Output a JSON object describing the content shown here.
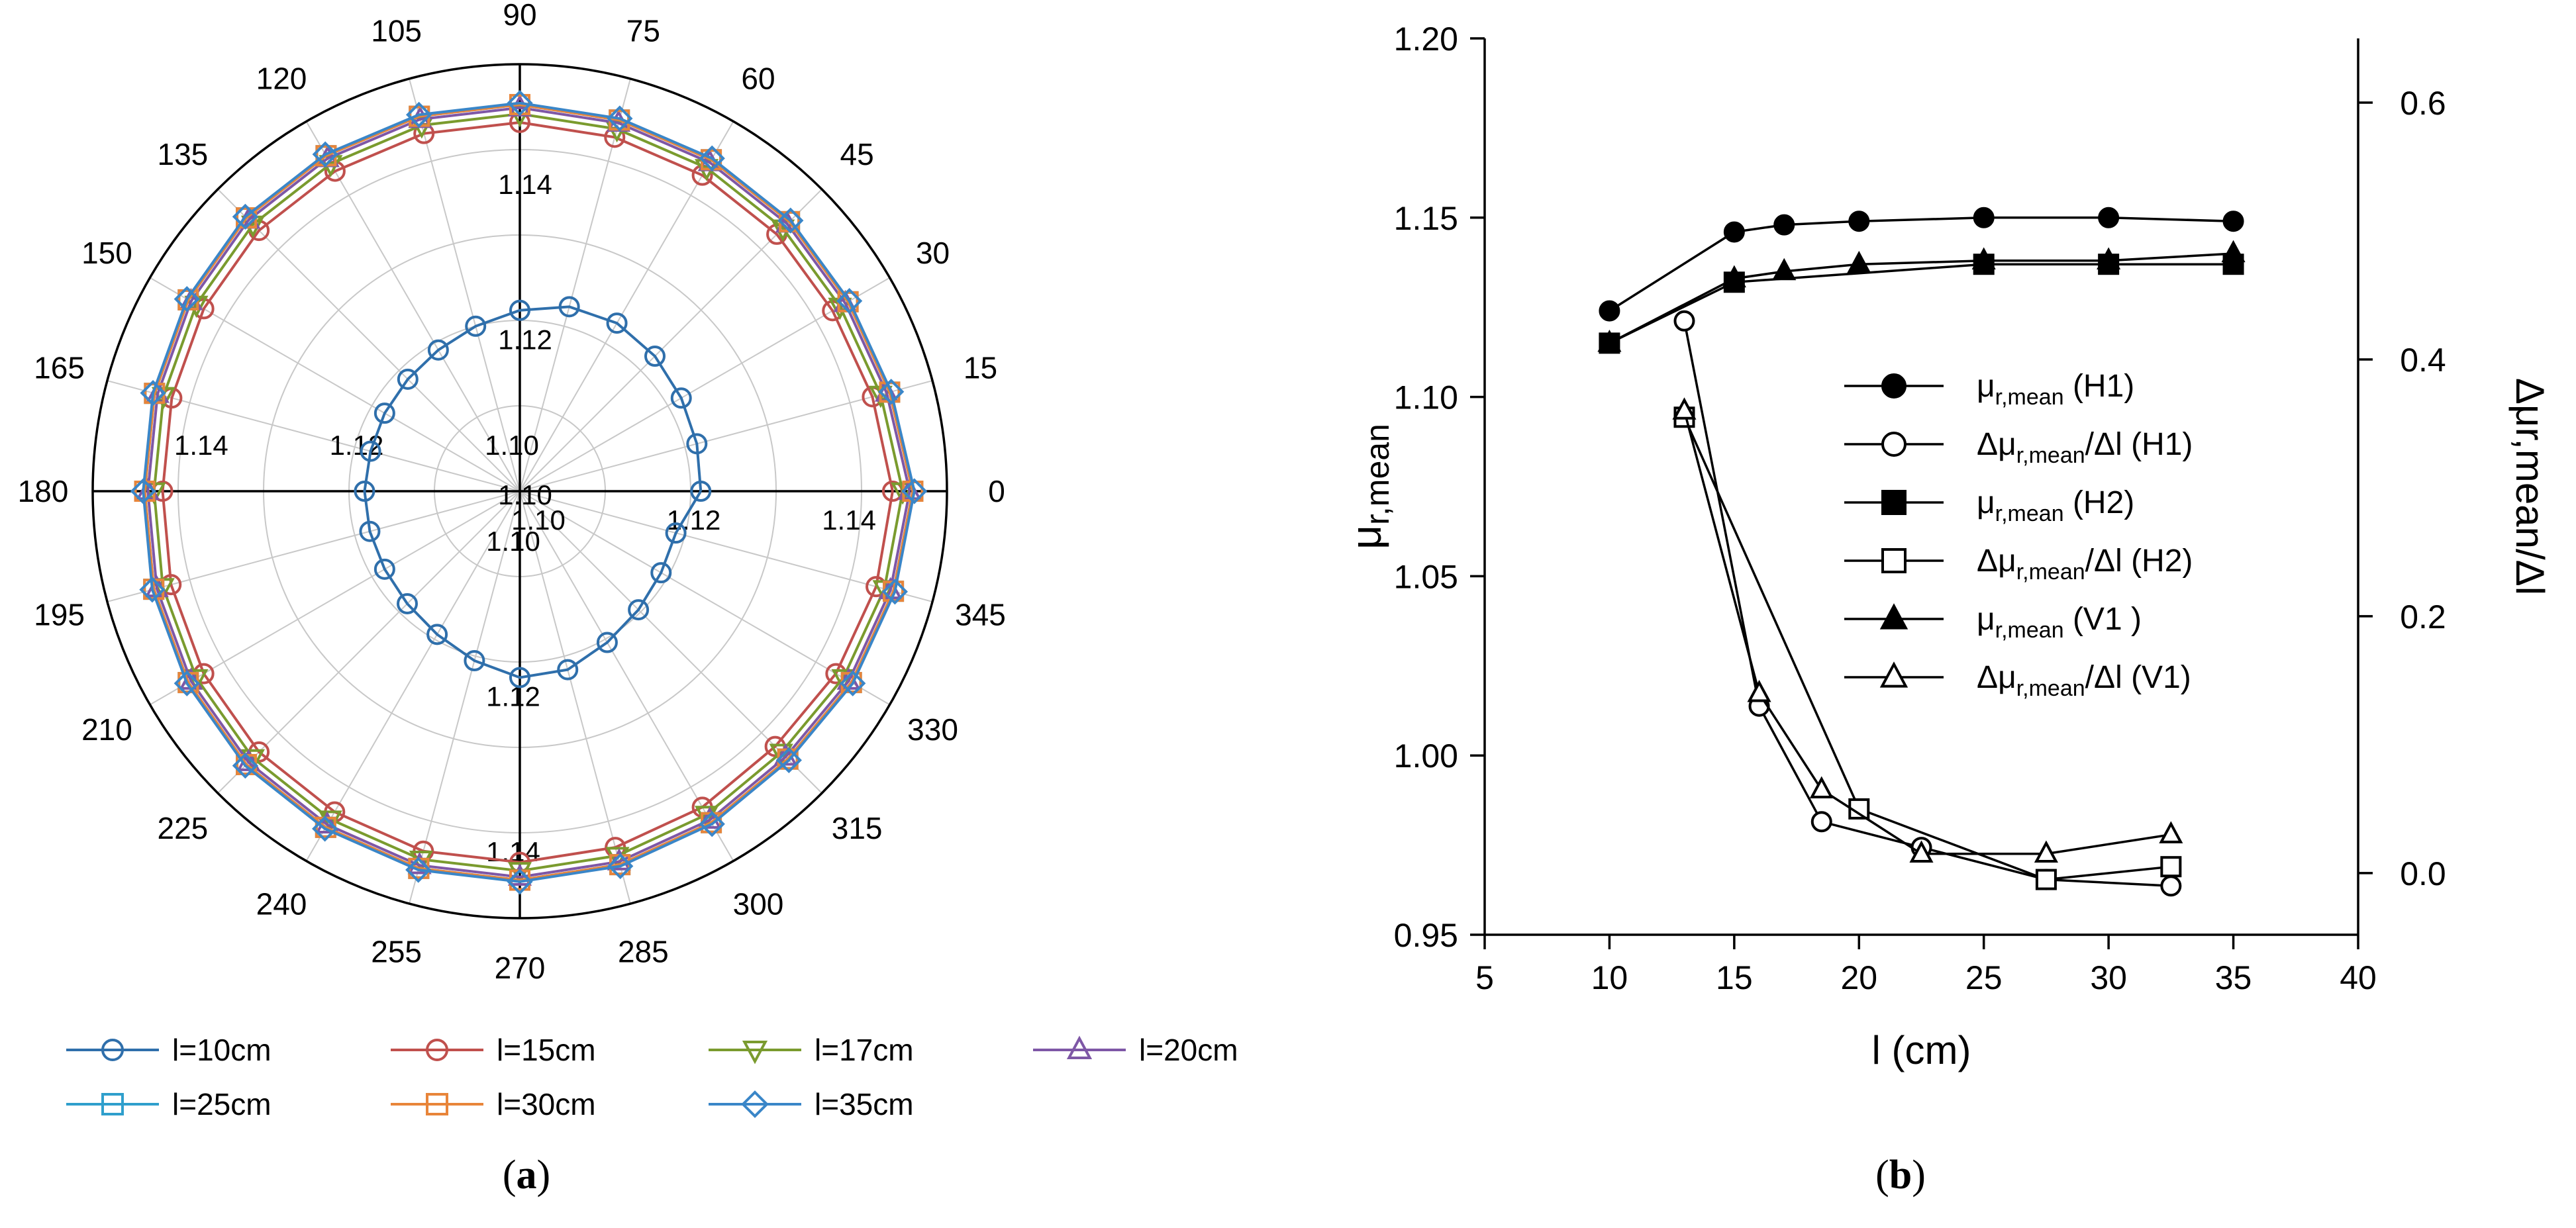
{
  "chart_data": [
    {
      "panel": "(a)",
      "type": "polar-line",
      "caption": "(a)",
      "angle_labels": [
        "0",
        "15",
        "30",
        "45",
        "60",
        "75",
        "90",
        "105",
        "120",
        "135",
        "150",
        "165",
        "180",
        "195",
        "210",
        "225",
        "240",
        "255",
        "270",
        "285",
        "300",
        "315",
        "330",
        "345"
      ],
      "radial_range": [
        1.1,
        1.155
      ],
      "radial_tick_values": [
        1.1,
        1.12,
        1.14
      ],
      "radial_tick_labels": [
        "1.10",
        "1.12",
        "1.14"
      ],
      "legend_position": "bottom",
      "series": [
        {
          "name": "l=10cm",
          "color": "#2f6fab",
          "marker": "circle",
          "values": [
            1.1233,
            1.1236,
            1.124,
            1.1246,
            1.125,
            1.1246,
            1.1233,
            1.122,
            1.121,
            1.1204,
            1.1201,
            1.1199,
            1.12,
            1.12,
            1.1201,
            1.1205,
            1.1213,
            1.1226,
            1.124,
            1.1238,
            1.1225,
            1.1216,
            1.121,
            1.1208
          ]
        },
        {
          "name": "l=15cm",
          "color": "#c0504d",
          "marker": "circle",
          "values": [
            1.148,
            1.147,
            1.1465,
            1.1468,
            1.147,
            1.1472,
            1.1475,
            1.1477,
            1.1476,
            1.1475,
            1.147,
            1.1464,
            1.146,
            1.1465,
            1.147,
            1.1475,
            1.1477,
            1.148,
            1.1478,
            1.1475,
            1.147,
            1.1465,
            1.147,
            1.1475
          ]
        },
        {
          "name": "l=17cm",
          "color": "#7a9b2e",
          "marker": "triangle-down",
          "values": [
            1.1493,
            1.1481,
            1.1476,
            1.1479,
            1.1481,
            1.1483,
            1.1486,
            1.1488,
            1.1487,
            1.1486,
            1.1481,
            1.1475,
            1.1471,
            1.1476,
            1.1481,
            1.1486,
            1.1488,
            1.1491,
            1.1489,
            1.1486,
            1.1481,
            1.1476,
            1.1481,
            1.1486
          ]
        },
        {
          "name": "l=20cm",
          "color": "#7e57a6",
          "marker": "triangle-up",
          "values": [
            1.1502,
            1.1489,
            1.1484,
            1.1487,
            1.1489,
            1.1491,
            1.1494,
            1.1496,
            1.1495,
            1.1494,
            1.1489,
            1.1483,
            1.1479,
            1.1484,
            1.1489,
            1.1494,
            1.1496,
            1.1499,
            1.1497,
            1.1494,
            1.1489,
            1.1484,
            1.1489,
            1.1494
          ]
        },
        {
          "name": "l=25cm",
          "color": "#2f9fcc",
          "marker": "square",
          "values": [
            1.1506,
            1.1493,
            1.1488,
            1.1491,
            1.1493,
            1.1495,
            1.1498,
            1.15,
            1.1499,
            1.1498,
            1.1493,
            1.1487,
            1.1483,
            1.1488,
            1.1493,
            1.1498,
            1.15,
            1.1503,
            1.1501,
            1.1498,
            1.1493,
            1.1488,
            1.1493,
            1.1498
          ]
        },
        {
          "name": "l=30cm",
          "color": "#e8853a",
          "marker": "square",
          "values": [
            1.1506,
            1.1493,
            1.1488,
            1.1491,
            1.1493,
            1.1495,
            1.1498,
            1.15,
            1.1499,
            1.1498,
            1.1493,
            1.1487,
            1.1483,
            1.1488,
            1.1493,
            1.1498,
            1.15,
            1.1503,
            1.1501,
            1.1498,
            1.1493,
            1.1488,
            1.1493,
            1.1498
          ]
        },
        {
          "name": "l=35cm",
          "color": "#3a86c8",
          "marker": "diamond",
          "values": [
            1.1508,
            1.1495,
            1.149,
            1.1493,
            1.1495,
            1.1497,
            1.15,
            1.1502,
            1.1501,
            1.15,
            1.1495,
            1.1489,
            1.1485,
            1.149,
            1.1495,
            1.15,
            1.1502,
            1.1505,
            1.1503,
            1.15,
            1.1495,
            1.149,
            1.1495,
            1.15
          ]
        }
      ]
    },
    {
      "panel": "(b)",
      "type": "line",
      "caption": "(b)",
      "xlabel": "l (cm)",
      "ylabel": "μr,mean",
      "ylabel_sub": "r,mean",
      "y2label": "Δμr,mean/Δl",
      "xlim": [
        5,
        40
      ],
      "ylim": [
        0.95,
        1.2
      ],
      "y2lim": [
        -0.048,
        0.65
      ],
      "x_ticks": [
        5,
        10,
        15,
        20,
        25,
        30,
        35,
        40
      ],
      "y_ticks": [
        "0.95",
        "1.00",
        "1.05",
        "1.10",
        "1.15",
        "1.20"
      ],
      "y2_ticks": [
        "0.0",
        "0.2",
        "0.4",
        "0.6"
      ],
      "legend_position": "right",
      "series": [
        {
          "name": "μr,mean (H1)",
          "label_main": "μ",
          "label_sub": "r,mean",
          "label_tail": " (H1)",
          "axis": "left",
          "marker": "circle",
          "filled": true,
          "x": [
            10,
            15,
            17,
            20,
            25,
            30,
            35
          ],
          "y": [
            1.124,
            1.146,
            1.148,
            1.149,
            1.15,
            1.15,
            1.149
          ]
        },
        {
          "name": "Δμr,mean/Δl (H1)",
          "label_main": "Δμ",
          "label_sub": "r,mean",
          "label_tail": "/Δl (H1)",
          "axis": "right",
          "marker": "circle",
          "filled": false,
          "x": [
            13,
            16,
            18.5,
            22.5,
            27.5,
            32.5
          ],
          "y": [
            0.43,
            0.13,
            0.04,
            0.02,
            -0.005,
            -0.01
          ]
        },
        {
          "name": "μr,mean (H2)",
          "label_main": "μ",
          "label_sub": "r,mean",
          "label_tail": " (H2)",
          "axis": "left",
          "marker": "square",
          "filled": true,
          "x": [
            10,
            15,
            25,
            30,
            35
          ],
          "y": [
            1.115,
            1.132,
            1.137,
            1.137,
            1.137
          ]
        },
        {
          "name": "Δμr,mean/Δl (H2)",
          "label_main": "Δμ",
          "label_sub": "r,mean",
          "label_tail": "/Δl (H2)",
          "axis": "right",
          "marker": "square",
          "filled": false,
          "x": [
            13,
            20,
            27.5,
            32.5
          ],
          "y": [
            0.355,
            0.05,
            -0.005,
            0.005
          ]
        },
        {
          "name": "μr,mean (V1 )",
          "label_main": "μ",
          "label_sub": "r,mean",
          "label_tail": " (V1 )",
          "axis": "left",
          "marker": "triangle",
          "filled": true,
          "x": [
            10,
            15,
            17,
            20,
            25,
            30,
            35
          ],
          "y": [
            1.115,
            1.133,
            1.135,
            1.137,
            1.138,
            1.138,
            1.14
          ]
        },
        {
          "name": "Δμr,mean/Δl (V1)",
          "label_main": "Δμ",
          "label_sub": "r,mean",
          "label_tail": "/Δl (V1)",
          "axis": "right",
          "marker": "triangle",
          "filled": false,
          "x": [
            13,
            16,
            18.5,
            22.5,
            27.5,
            32.5
          ],
          "y": [
            0.36,
            0.14,
            0.065,
            0.015,
            0.015,
            0.03
          ]
        }
      ]
    }
  ]
}
